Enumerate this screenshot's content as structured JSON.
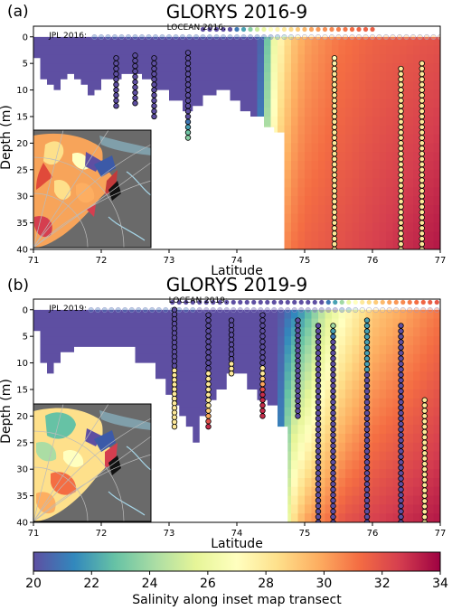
{
  "chart_data": [
    {
      "type": "heatmap",
      "panel_label": "(a)",
      "title": "GLORYS 2016-9",
      "xlabel": "Latitude",
      "ylabel": "Depth (m)",
      "xlim": [
        71,
        77
      ],
      "ylim": [
        40,
        -2
      ],
      "x_ticks": [
        71,
        72,
        73,
        74,
        75,
        76,
        77
      ],
      "y_ticks": [
        0,
        5,
        10,
        15,
        20,
        25,
        30,
        35,
        40
      ],
      "locean_label": "LOCEAN 2016:",
      "jpl_label": "JPL 2016:",
      "surface_locean": {
        "start_lat": 73.5,
        "salinity": [
          20,
          20,
          20,
          20,
          20,
          21,
          22,
          23.5,
          25,
          26,
          27,
          27.5,
          28,
          28.5,
          29,
          29.5,
          30,
          30.2,
          30.4,
          30.6,
          30.8,
          31,
          31.2,
          31.4,
          31.5,
          31.6
        ]
      },
      "surface_jpl": {
        "start_lat": 71.9,
        "salinity": [
          21,
          21,
          21,
          21,
          21,
          21,
          21,
          21,
          21,
          21,
          21,
          21,
          21,
          21,
          21,
          21,
          21,
          21,
          21,
          21,
          21,
          21,
          21,
          21,
          21,
          21,
          21,
          22,
          23,
          24,
          26,
          28,
          28,
          28,
          28,
          29,
          29,
          29,
          29,
          29,
          29,
          29,
          29,
          29,
          29,
          29,
          29,
          29,
          29,
          29,
          29,
          29
        ]
      },
      "bottom_depth": [
        [
          71.0,
          4
        ],
        [
          71.1,
          8
        ],
        [
          71.2,
          9
        ],
        [
          71.3,
          10
        ],
        [
          71.4,
          8
        ],
        [
          71.5,
          7
        ],
        [
          71.6,
          8
        ],
        [
          71.7,
          9
        ],
        [
          71.8,
          11
        ],
        [
          71.9,
          10
        ],
        [
          72.0,
          8
        ],
        [
          72.3,
          7
        ],
        [
          72.6,
          8
        ],
        [
          72.8,
          10
        ],
        [
          73.0,
          12
        ],
        [
          73.2,
          14
        ],
        [
          73.35,
          13
        ],
        [
          73.5,
          11
        ],
        [
          73.7,
          10
        ],
        [
          73.9,
          12
        ],
        [
          74.05,
          14
        ],
        [
          74.2,
          15
        ],
        [
          74.4,
          17
        ],
        [
          74.55,
          18
        ],
        [
          74.7,
          40
        ],
        [
          77.0,
          40
        ]
      ],
      "surface_salinity_profile": [
        [
          71.0,
          20
        ],
        [
          74.3,
          20
        ],
        [
          74.4,
          21
        ],
        [
          74.45,
          23
        ],
        [
          74.5,
          25
        ],
        [
          74.6,
          27
        ],
        [
          74.8,
          29
        ],
        [
          75.0,
          30
        ],
        [
          75.5,
          31
        ],
        [
          76.0,
          31.5
        ],
        [
          77.0,
          32
        ]
      ],
      "deep_salinity_profile": [
        [
          71.0,
          20
        ],
        [
          74.3,
          20
        ],
        [
          74.4,
          24
        ],
        [
          74.5,
          28
        ],
        [
          74.6,
          30
        ],
        [
          74.8,
          31
        ],
        [
          75.0,
          31.5
        ],
        [
          75.5,
          32
        ],
        [
          76.0,
          32.5
        ],
        [
          77.0,
          33.5
        ]
      ],
      "stations": [
        {
          "lat": 72.22,
          "top": 4,
          "bottom": 13,
          "salinity": [
            20,
            20,
            20,
            20,
            20,
            20,
            20,
            20,
            20,
            20
          ]
        },
        {
          "lat": 72.5,
          "top": 3.5,
          "bottom": 12.5,
          "salinity": [
            20,
            20,
            20,
            20,
            20,
            20,
            20,
            20,
            20,
            20
          ]
        },
        {
          "lat": 72.78,
          "top": 4,
          "bottom": 15,
          "salinity": [
            20,
            20,
            20,
            20,
            20,
            20,
            20,
            20,
            20,
            20,
            20,
            20
          ]
        },
        {
          "lat": 73.28,
          "top": 3,
          "bottom": 19,
          "salinity": [
            20,
            20,
            20,
            20,
            20,
            20,
            20,
            20,
            20,
            20,
            20,
            20,
            20,
            21,
            22,
            23,
            23.5
          ]
        },
        {
          "lat": 75.44,
          "top": 4,
          "bottom": 40,
          "salinity": [
            27,
            27.5,
            27.5,
            28,
            28,
            28,
            28,
            28,
            28,
            28,
            28,
            28,
            28,
            28,
            28,
            28,
            28,
            28,
            28,
            28,
            28,
            28,
            28,
            28,
            28,
            28,
            28,
            28,
            28,
            28,
            28,
            28,
            28,
            28,
            28,
            28,
            28
          ]
        },
        {
          "lat": 76.42,
          "top": 6,
          "bottom": 40,
          "salinity": [
            28,
            28,
            28,
            28,
            28,
            28,
            28,
            28,
            28,
            28,
            28,
            28,
            28,
            28,
            28,
            28,
            28,
            28,
            28,
            28,
            28,
            28,
            28,
            28,
            28,
            28,
            28,
            28,
            28,
            28,
            28,
            28,
            28,
            28,
            28
          ]
        },
        {
          "lat": 76.73,
          "top": 5,
          "bottom": 40,
          "salinity": [
            28,
            28,
            28,
            28,
            28,
            28,
            28,
            28,
            28,
            28,
            28,
            28,
            28,
            28,
            28,
            28,
            28,
            28,
            28,
            28,
            28,
            28,
            28,
            28,
            28,
            28,
            28,
            28,
            28,
            28,
            28,
            28,
            28,
            28,
            28,
            28
          ]
        }
      ]
    },
    {
      "type": "heatmap",
      "panel_label": "(b)",
      "title": "GLORYS 2019-9",
      "xlabel": "Latitude",
      "ylabel": "Depth (m)",
      "xlim": [
        71,
        77
      ],
      "ylim": [
        40,
        -2
      ],
      "x_ticks": [
        71,
        72,
        73,
        74,
        75,
        76,
        77
      ],
      "y_ticks": [
        0,
        5,
        10,
        15,
        20,
        25,
        30,
        35,
        40
      ],
      "locean_label": "LOCEAN 2019:",
      "jpl_label": "JPL 2019:",
      "surface_locean": {
        "start_lat": 73.05,
        "salinity": [
          20,
          20,
          20,
          20,
          20,
          20,
          20,
          20,
          20,
          20,
          20,
          20,
          20,
          20,
          20,
          20,
          20,
          20,
          20,
          20,
          20,
          20,
          20,
          21,
          22,
          24,
          26,
          27,
          28,
          28.5,
          29,
          29.5,
          30,
          30.3,
          30.6,
          30.9,
          31.2,
          31.4,
          31.6,
          31.8,
          32
        ]
      },
      "surface_jpl": {
        "start_lat": 71.85,
        "salinity": [
          21,
          21,
          21,
          21,
          21,
          21,
          21,
          21,
          21,
          21,
          21,
          21,
          21,
          21,
          21,
          21,
          20,
          20,
          20,
          20,
          20,
          20,
          20,
          20,
          20,
          20,
          20,
          20,
          20,
          20,
          20,
          20,
          20,
          20,
          20,
          20,
          20,
          21,
          22,
          24,
          26,
          27,
          28,
          28.5,
          29,
          29.5,
          30,
          30.3,
          30.6,
          30.9,
          31.2,
          31.4,
          31.6
        ]
      },
      "bottom_depth": [
        [
          71.0,
          4
        ],
        [
          71.1,
          10
        ],
        [
          71.2,
          12
        ],
        [
          71.3,
          10
        ],
        [
          71.4,
          8
        ],
        [
          71.6,
          7
        ],
        [
          72.0,
          7
        ],
        [
          72.5,
          10
        ],
        [
          72.8,
          13
        ],
        [
          72.95,
          16
        ],
        [
          73.05,
          18
        ],
        [
          73.15,
          20
        ],
        [
          73.25,
          22
        ],
        [
          73.35,
          25
        ],
        [
          73.45,
          20
        ],
        [
          73.55,
          17
        ],
        [
          73.7,
          15
        ],
        [
          73.85,
          12
        ],
        [
          74.0,
          12
        ],
        [
          74.15,
          15
        ],
        [
          74.3,
          17
        ],
        [
          74.45,
          18
        ],
        [
          74.6,
          22
        ],
        [
          74.75,
          40
        ],
        [
          77.0,
          40
        ]
      ],
      "surface_salinity_profile": [
        [
          71.0,
          20
        ],
        [
          74.6,
          20
        ],
        [
          74.8,
          21
        ],
        [
          75.0,
          22
        ],
        [
          75.3,
          25
        ],
        [
          75.6,
          27
        ],
        [
          76.0,
          29
        ],
        [
          76.5,
          30
        ],
        [
          77.0,
          31
        ]
      ],
      "deep_salinity_profile": [
        [
          71.0,
          20
        ],
        [
          74.6,
          20
        ],
        [
          74.8,
          28
        ],
        [
          75.0,
          30
        ],
        [
          75.3,
          31
        ],
        [
          75.6,
          32
        ],
        [
          76.0,
          32.5
        ],
        [
          76.5,
          33
        ],
        [
          77.0,
          33.5
        ]
      ],
      "stations": [
        {
          "lat": 73.08,
          "top": 0,
          "bottom": 22,
          "salinity": [
            20,
            20,
            20,
            20,
            20,
            20,
            20,
            20,
            20,
            20,
            20,
            20,
            20,
            28,
            28,
            28,
            28,
            28,
            28,
            28,
            28,
            28,
            28,
            28,
            28,
            28
          ]
        },
        {
          "lat": 73.58,
          "top": 1,
          "bottom": 22,
          "salinity": [
            20,
            20,
            20,
            20,
            20,
            20,
            20,
            20,
            20,
            20,
            20,
            28,
            28,
            28,
            28,
            28,
            28,
            28,
            29,
            30,
            32,
            33
          ]
        },
        {
          "lat": 73.92,
          "top": 2,
          "bottom": 12,
          "salinity": [
            20,
            20,
            20,
            20,
            20,
            20,
            20,
            20,
            20,
            28,
            28,
            28
          ]
        },
        {
          "lat": 74.38,
          "top": 1,
          "bottom": 20,
          "salinity": [
            20,
            20,
            20,
            20,
            20,
            20,
            20,
            20,
            20,
            20,
            28,
            28,
            29,
            30,
            32,
            33,
            33,
            33,
            33,
            33
          ]
        },
        {
          "lat": 74.9,
          "top": 2,
          "bottom": 20,
          "salinity": [
            20,
            20,
            20,
            20,
            20,
            20,
            20,
            20,
            20,
            20,
            20,
            20,
            20,
            20,
            20,
            20,
            20,
            20,
            20,
            20
          ]
        },
        {
          "lat": 75.2,
          "top": 3,
          "bottom": 40,
          "salinity": [
            20,
            20,
            20,
            20,
            20,
            20,
            20,
            20,
            20,
            20,
            20,
            20,
            20,
            20,
            20,
            20,
            20,
            20,
            20,
            20,
            20,
            20,
            20,
            20,
            20,
            20,
            20,
            20,
            20,
            20,
            20,
            20,
            20,
            20,
            20,
            20,
            20
          ]
        },
        {
          "lat": 75.42,
          "top": 3,
          "bottom": 40,
          "salinity": [
            24,
            22,
            21,
            20,
            20,
            20,
            20,
            20,
            20,
            20,
            20,
            20,
            20,
            20,
            20,
            20,
            20,
            20,
            20,
            20,
            20,
            20,
            20,
            20,
            20,
            20,
            20,
            20,
            20,
            20,
            20,
            20,
            20,
            20,
            20,
            20,
            20
          ]
        },
        {
          "lat": 75.92,
          "top": 2,
          "bottom": 40,
          "salinity": [
            22,
            22,
            22,
            22,
            22,
            22,
            22,
            22,
            22,
            22,
            20,
            20,
            20,
            20,
            20,
            20,
            20,
            20,
            20,
            20,
            20,
            20,
            20,
            20,
            20,
            20,
            20,
            20,
            20,
            20,
            20,
            20,
            20,
            20,
            20,
            20,
            20,
            20
          ]
        },
        {
          "lat": 76.42,
          "top": 3,
          "bottom": 40,
          "salinity": [
            20,
            20,
            20,
            20,
            20,
            20,
            20,
            20,
            20,
            20,
            20,
            20,
            20,
            20,
            20,
            20,
            20,
            20,
            20,
            20,
            20,
            20,
            20,
            20,
            20,
            20,
            20,
            20,
            20,
            20,
            20,
            20,
            20,
            20,
            20,
            20,
            20
          ]
        },
        {
          "lat": 76.77,
          "top": 17,
          "bottom": 40,
          "salinity": [
            28,
            28,
            28,
            28,
            28,
            28,
            28,
            28,
            28,
            28,
            28,
            28,
            28,
            28,
            28,
            28,
            28,
            28,
            28,
            28,
            28,
            28,
            28,
            28
          ]
        }
      ]
    }
  ],
  "colorbar": {
    "label": "Salinity along inset map transect",
    "min": 20,
    "max": 34,
    "ticks": [
      20,
      22,
      24,
      26,
      28,
      30,
      32,
      34
    ]
  }
}
